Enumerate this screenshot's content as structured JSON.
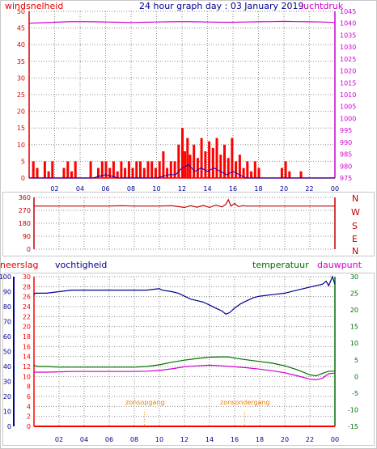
{
  "colors": {
    "wind": "#e00000",
    "wind_gust": "#ff0000",
    "wind_avg": "#0000c0",
    "pressure": "#d000d0",
    "direction": "#c00000",
    "humidity": "#000090",
    "temperature": "#007000",
    "dewpoint": "#d000d0",
    "rain": "#ff0000",
    "sun": "#e08000",
    "title": "#000090",
    "grid": "#8c8c8c",
    "border": "#c8c8c8"
  },
  "chart_data": [
    {
      "type": "area",
      "title": "24 hour graph day : 03 January 2019",
      "left_label": "windsnelheid",
      "right_label": "luchtdruk",
      "x": {
        "ticks": [
          "02",
          "04",
          "06",
          "08",
          "10",
          "12",
          "14",
          "16",
          "18",
          "20",
          "22",
          "00"
        ],
        "range": [
          0,
          24
        ]
      },
      "y_left": {
        "ticks": [
          "0",
          "5",
          "10",
          "15",
          "20",
          "25",
          "30",
          "35",
          "40",
          "45",
          "50"
        ],
        "range": [
          0,
          50
        ]
      },
      "y_right": {
        "ticks": [
          "975",
          "980",
          "985",
          "990",
          "995",
          "1000",
          "1005",
          "1010",
          "1015",
          "1020",
          "1025",
          "1030",
          "1035",
          "1040",
          "1045"
        ],
        "range": [
          975,
          1045
        ]
      },
      "pressure": {
        "x": [
          0,
          1,
          2,
          3,
          4,
          5,
          6,
          7,
          8,
          9,
          10,
          11,
          12,
          13,
          14,
          15,
          16,
          17,
          18,
          19,
          20,
          21,
          22,
          23,
          24
        ],
        "y": [
          1040,
          1040.2,
          1040.4,
          1040.6,
          1040.7,
          1040.6,
          1040.5,
          1040.4,
          1040.3,
          1040.4,
          1040.5,
          1040.6,
          1040.7,
          1040.6,
          1040.5,
          1040.4,
          1040.4,
          1040.5,
          1040.6,
          1040.7,
          1040.8,
          1040.7,
          1040.6,
          1040.5,
          1040.3
        ]
      },
      "wind_gust": {
        "x": [
          0,
          0.3,
          0.6,
          0.9,
          1.2,
          1.5,
          1.8,
          2.1,
          2.4,
          2.7,
          3.0,
          3.3,
          3.6,
          3.9,
          4.2,
          4.5,
          4.8,
          5.1,
          5.4,
          5.7,
          6.0,
          6.3,
          6.6,
          6.9,
          7.2,
          7.5,
          7.8,
          8.1,
          8.4,
          8.7,
          9.0,
          9.3,
          9.6,
          9.9,
          10.2,
          10.5,
          10.8,
          11.1,
          11.4,
          11.7,
          12.0,
          12.2,
          12.4,
          12.6,
          12.9,
          13.2,
          13.5,
          13.8,
          14.1,
          14.4,
          14.7,
          15.0,
          15.3,
          15.6,
          15.9,
          16.2,
          16.5,
          16.8,
          17.1,
          17.4,
          17.7,
          18.0,
          18.3,
          18.6,
          18.9,
          19.2,
          19.5,
          19.8,
          20.1,
          20.4,
          20.7,
          21.0,
          21.3,
          21.6,
          21.9,
          22.2,
          22.5,
          22.8,
          23.1,
          23.4,
          23.7,
          24.0
        ],
        "y": [
          0,
          5,
          3,
          0,
          5,
          2,
          5,
          0,
          0,
          3,
          5,
          2,
          5,
          0,
          0,
          0,
          5,
          0,
          3,
          5,
          5,
          3,
          5,
          2,
          5,
          3,
          5,
          3,
          5,
          5,
          3,
          5,
          5,
          3,
          5,
          8,
          3,
          5,
          5,
          10,
          15,
          8,
          12,
          7,
          10,
          6,
          12,
          8,
          11,
          9,
          12,
          7,
          10,
          6,
          12,
          5,
          7,
          3,
          5,
          2,
          5,
          3,
          0,
          0,
          0,
          0,
          0,
          3,
          5,
          2,
          0,
          0,
          2,
          0,
          0,
          0,
          0,
          0,
          0,
          0,
          0,
          0
        ]
      },
      "wind_avg": {
        "x": [
          0,
          1,
          2,
          3,
          4,
          5,
          6,
          7,
          8,
          9,
          10,
          11,
          11.5,
          12,
          12.5,
          13,
          13.5,
          14,
          14.5,
          15,
          15.5,
          16,
          16.5,
          17,
          17.5,
          18,
          19,
          20,
          21,
          22,
          23,
          24
        ],
        "y": [
          0,
          0,
          0,
          0,
          0,
          0,
          1,
          0,
          0,
          0,
          0,
          1,
          1,
          3,
          4,
          2,
          3,
          2,
          3,
          2,
          1,
          2,
          1,
          0,
          0,
          0,
          0,
          0,
          0,
          0,
          0,
          0
        ]
      }
    },
    {
      "type": "line",
      "right_labels": [
        "N",
        "W",
        "S",
        "E",
        "N"
      ],
      "y": {
        "ticks": [
          "360",
          "270",
          "180",
          "90",
          "0"
        ],
        "range": [
          0,
          360
        ]
      },
      "direction": {
        "x": [
          0,
          1,
          2,
          3,
          4,
          5,
          6,
          7,
          8,
          9,
          10,
          11,
          11.5,
          12,
          12.5,
          13,
          13.5,
          14,
          14.5,
          15,
          15.3,
          15.5,
          15.7,
          16,
          16.3,
          16.6,
          17,
          18,
          19,
          20,
          21,
          22,
          23,
          24
        ],
        "y": [
          300,
          300,
          300,
          300,
          300,
          300,
          300,
          302,
          300,
          300,
          300,
          302,
          296,
          290,
          302,
          292,
          304,
          290,
          306,
          294,
          312,
          344,
          300,
          318,
          296,
          302,
          300,
          300,
          300,
          300,
          300,
          300,
          300,
          300
        ]
      }
    },
    {
      "type": "line",
      "labels": {
        "rain": "neerslag",
        "humidity": "vochtigheid",
        "temperature": "temperatuur",
        "dewpoint": "dauwpunt"
      },
      "x": {
        "ticks": [
          "02",
          "04",
          "06",
          "08",
          "10",
          "12",
          "14",
          "16",
          "18",
          "20",
          "22",
          "00"
        ],
        "range": [
          0,
          24
        ]
      },
      "y_rain": {
        "ticks": [
          "0",
          "2",
          "4",
          "6",
          "8",
          "10",
          "12",
          "14",
          "16",
          "18",
          "20",
          "22",
          "24",
          "26",
          "28",
          "30"
        ],
        "range": [
          0,
          30
        ]
      },
      "y_humidity": {
        "ticks": [
          "0",
          "10",
          "20",
          "30",
          "40",
          "50",
          "60",
          "70",
          "80",
          "90",
          "100"
        ],
        "range": [
          0,
          100
        ]
      },
      "y_temp": {
        "ticks": [
          "-15",
          "-10",
          "-5",
          "0",
          "5",
          "10",
          "15",
          "20",
          "25",
          "30"
        ],
        "range": [
          -15,
          30
        ]
      },
      "events": [
        {
          "label": "zonsopgang",
          "x": 8.8
        },
        {
          "label": "zonsondergang",
          "x": 16.8
        }
      ],
      "humidity": {
        "x": [
          0,
          0.1,
          1,
          2,
          3,
          4,
          5,
          6,
          7,
          8,
          9,
          10,
          10.2,
          11,
          11.5,
          12,
          12.5,
          13,
          13.5,
          14,
          14.5,
          15,
          15.3,
          15.6,
          16,
          16.5,
          17,
          17.5,
          18,
          19,
          20,
          21,
          22,
          22.5,
          23,
          23.3,
          23.5,
          23.8,
          24
        ],
        "y": [
          88,
          89,
          89,
          90,
          91,
          91,
          91,
          91,
          91,
          91,
          91,
          92,
          91,
          90,
          89,
          87,
          85,
          84,
          83,
          81,
          79,
          77,
          75,
          76,
          79,
          82,
          84,
          86,
          87,
          88,
          89,
          91,
          93,
          94,
          95,
          97,
          94,
          100,
          95
        ]
      },
      "temperature": {
        "x": [
          0,
          0.2,
          1,
          2,
          3,
          4,
          5,
          6,
          7,
          8,
          9,
          10,
          11,
          12,
          13,
          14,
          15,
          15.5,
          16,
          17,
          18,
          19,
          20,
          21,
          22,
          22.5,
          23,
          23.5,
          24
        ],
        "y": [
          3.5,
          3.0,
          3.0,
          2.8,
          2.8,
          2.8,
          2.8,
          2.8,
          2.8,
          2.8,
          3.0,
          3.5,
          4.3,
          4.9,
          5.4,
          5.8,
          5.9,
          5.9,
          5.5,
          5.0,
          4.5,
          4.0,
          3.2,
          2.0,
          0.5,
          0.2,
          0.9,
          1.6,
          1.6
        ]
      },
      "dewpoint": {
        "x": [
          0,
          0.2,
          1,
          2,
          3,
          4,
          5,
          6,
          7,
          8,
          9,
          10,
          11,
          12,
          13,
          14,
          15,
          16,
          17,
          18,
          19,
          20,
          21,
          22,
          22.5,
          23,
          23.5,
          24
        ],
        "y": [
          1.3,
          1.3,
          1.3,
          1.4,
          1.5,
          1.5,
          1.5,
          1.5,
          1.5,
          1.5,
          1.6,
          1.8,
          2.3,
          2.9,
          3.2,
          3.4,
          3.2,
          2.9,
          2.6,
          2.2,
          1.7,
          1.1,
          0.2,
          -0.8,
          -1.0,
          -0.5,
          0.8,
          1.0
        ]
      },
      "rain": {
        "x": [
          0,
          24
        ],
        "y": [
          0,
          0
        ]
      }
    }
  ]
}
